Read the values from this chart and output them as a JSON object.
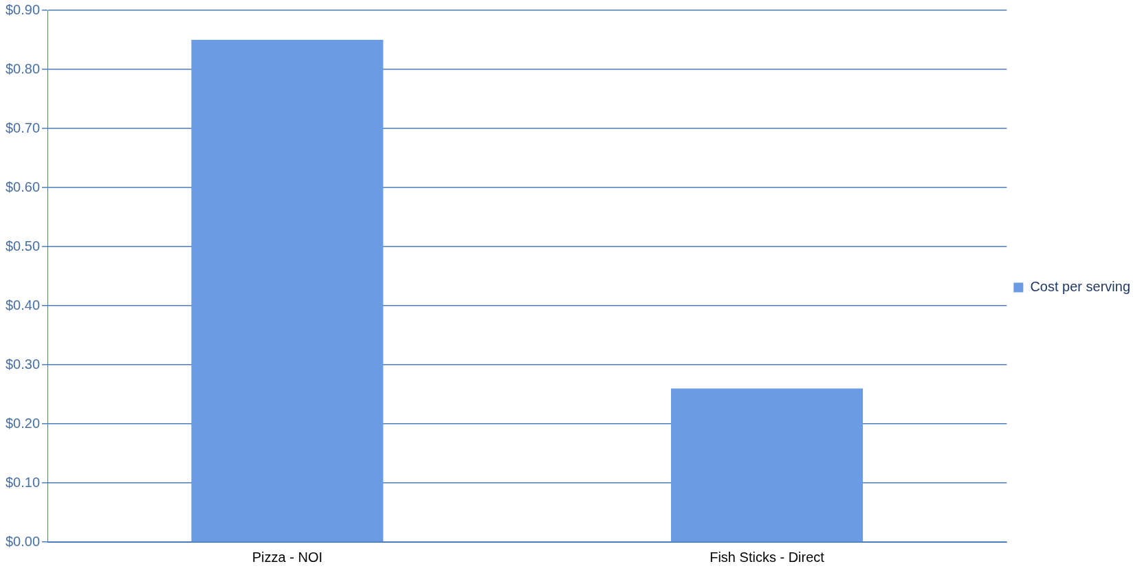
{
  "chart_data": {
    "type": "bar",
    "categories": [
      "Pizza - NOI",
      "Fish Sticks - Direct"
    ],
    "series": [
      {
        "name": "Cost per serving",
        "color": "#6a9be3",
        "values": [
          0.85,
          0.26
        ]
      }
    ],
    "ylim": [
      0,
      0.9
    ],
    "yticks": [
      {
        "value": 0,
        "label": "$0.00"
      },
      {
        "value": 0.1,
        "label": "$0.10"
      },
      {
        "value": 0.2,
        "label": "$0.20"
      },
      {
        "value": 0.3,
        "label": "$0.30"
      },
      {
        "value": 0.4,
        "label": "$0.40"
      },
      {
        "value": 0.5,
        "label": "$0.50"
      },
      {
        "value": 0.6,
        "label": "$0.60"
      },
      {
        "value": 0.7,
        "label": "$0.70"
      },
      {
        "value": 0.8,
        "label": "$0.80"
      },
      {
        "value": 0.9,
        "label": "$0.90"
      }
    ],
    "grid": "y",
    "legend": "right"
  }
}
